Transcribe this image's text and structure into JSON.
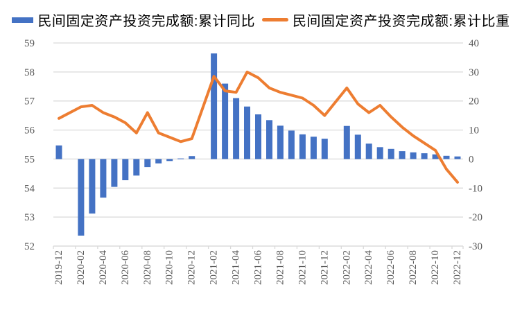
{
  "legend": {
    "series1_label": "民间固定资产投资完成额:累计同比",
    "series2_label": "民间固定资产投资完成额:累计比重"
  },
  "colors": {
    "bar": "#4472C4",
    "line": "#ED7D31",
    "grid": "#D9D9D9",
    "axis_text": "#595959",
    "legend_text": "#000000"
  },
  "chart_data": {
    "type": "bar",
    "subtype": "combo-bar-line-dual-axis",
    "title": "",
    "grid": true,
    "legend_position": "top",
    "categories": [
      "2019-12",
      "2020-01",
      "2020-02",
      "2020-03",
      "2020-04",
      "2020-05",
      "2020-06",
      "2020-07",
      "2020-08",
      "2020-09",
      "2020-10",
      "2020-11",
      "2020-12",
      "2021-01",
      "2021-02",
      "2021-03",
      "2021-04",
      "2021-05",
      "2021-06",
      "2021-07",
      "2021-08",
      "2021-09",
      "2021-10",
      "2021-11",
      "2021-12",
      "2022-01",
      "2022-02",
      "2022-03",
      "2022-04",
      "2022-05",
      "2022-06",
      "2022-07",
      "2022-08",
      "2022-09",
      "2022-10",
      "2022-11",
      "2022-12"
    ],
    "series": [
      {
        "name": "民间固定资产投资完成额:累计同比",
        "type": "bar",
        "axis": "right",
        "color": "#4472C4",
        "values": [
          4.7,
          null,
          -26.4,
          -18.8,
          -13.3,
          -9.6,
          -7.3,
          -5.7,
          -2.8,
          -1.5,
          -0.7,
          0.2,
          1.0,
          null,
          36.4,
          26.0,
          21.0,
          18.1,
          15.4,
          13.4,
          11.5,
          9.8,
          8.5,
          7.7,
          7.0,
          null,
          11.4,
          8.4,
          5.3,
          4.1,
          3.5,
          2.7,
          2.3,
          2.0,
          1.6,
          1.1,
          0.9
        ]
      },
      {
        "name": "民间固定资产投资完成额:累计比重",
        "type": "line",
        "axis": "left",
        "color": "#ED7D31",
        "values": [
          56.4,
          null,
          56.8,
          56.85,
          56.6,
          56.45,
          56.25,
          55.9,
          56.6,
          55.9,
          55.75,
          55.6,
          55.7,
          null,
          57.85,
          57.35,
          57.3,
          58.0,
          57.8,
          57.45,
          57.3,
          57.2,
          57.1,
          56.85,
          56.5,
          null,
          57.45,
          56.9,
          56.6,
          56.85,
          56.45,
          56.1,
          55.8,
          55.55,
          55.3,
          54.65,
          54.2
        ]
      }
    ],
    "left_axis": {
      "min": 52,
      "max": 59,
      "ticks": [
        59,
        58,
        57,
        56,
        55,
        54,
        53,
        52
      ]
    },
    "right_axis": {
      "min": -30,
      "max": 40,
      "ticks": [
        40,
        30,
        20,
        10,
        0,
        -10,
        -20,
        -30
      ]
    },
    "x_tick_labels": [
      "2019-12",
      "2020-02",
      "2020-04",
      "2020-06",
      "2020-08",
      "2020-10",
      "2020-12",
      "2021-02",
      "2021-04",
      "2021-06",
      "2021-08",
      "2021-10",
      "2021-12",
      "2022-02",
      "2022-04",
      "2022-06",
      "2022-08",
      "2022-10",
      "2022-12"
    ],
    "x_label_every_n": 2
  }
}
